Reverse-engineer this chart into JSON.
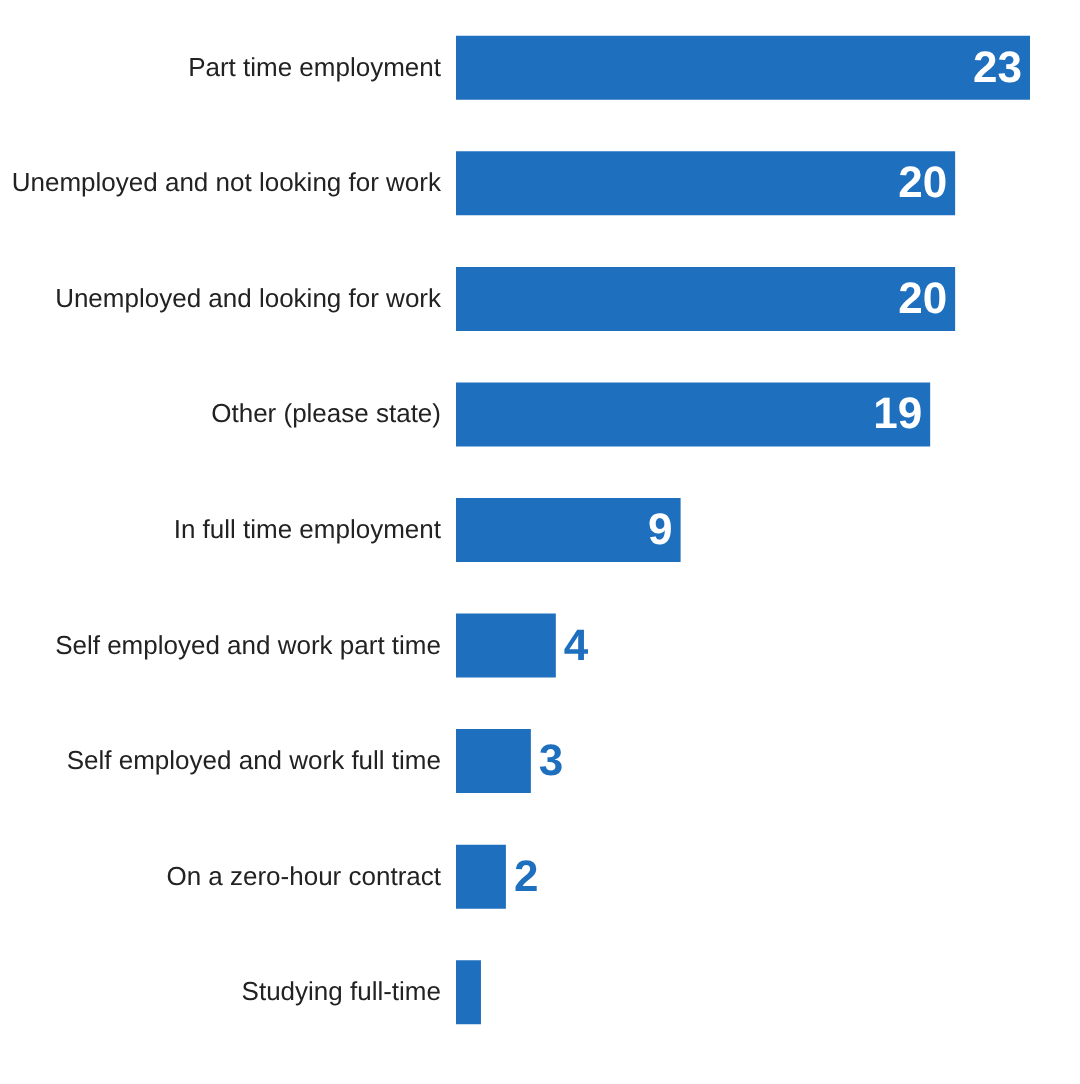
{
  "chart_data": {
    "type": "bar",
    "orientation": "horizontal",
    "categories": [
      "Part time employment",
      "Unemployed and not looking for work",
      "Unemployed and looking for work",
      "Other (please state)",
      "In full time employment",
      "Self employed and work part time",
      "Self employed and work full time",
      "On a zero-hour contract",
      "Studying full-time"
    ],
    "values": [
      23,
      20,
      20,
      19,
      9,
      4,
      3,
      2,
      1
    ],
    "value_labels": [
      "23",
      "20",
      "20",
      "19",
      "9",
      "4",
      "3",
      "2",
      null
    ],
    "color": "#1f6fbf"
  }
}
